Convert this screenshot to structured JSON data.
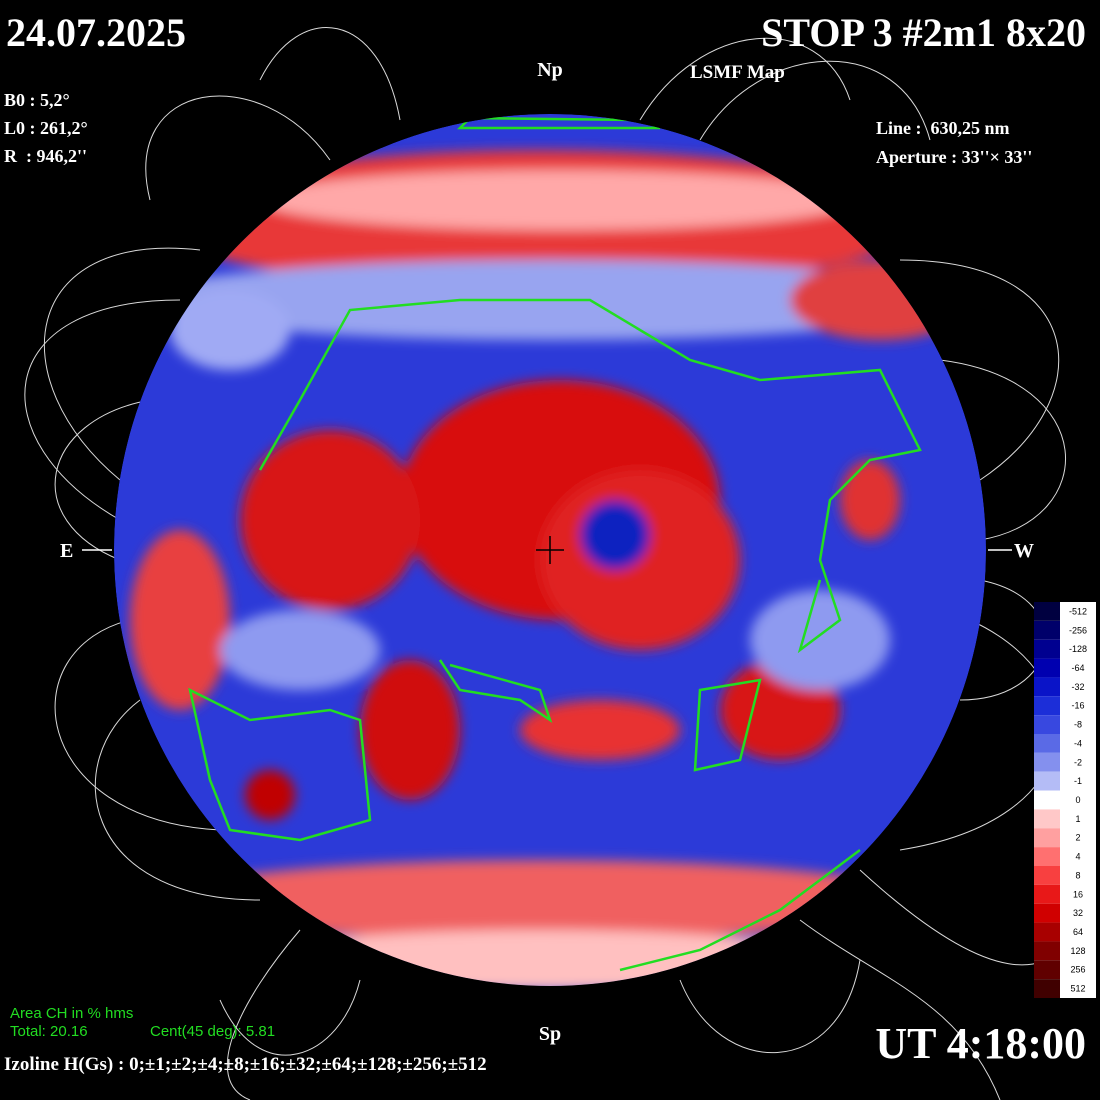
{
  "header": {
    "date": "24.07.2025",
    "title": "STOP 3 #2m1 8x20",
    "subtitle": "LSMF  Map"
  },
  "parameters": [
    "B0 : 5,2°",
    "L0 : 261,2°",
    "R  : 946,2''"
  ],
  "instrument": [
    "Line :  630,25 nm",
    "Aperture : 33''× 33''"
  ],
  "directions": {
    "north": "Np",
    "south": "Sp",
    "east": "E",
    "west": "W"
  },
  "colorbar": {
    "labels": [
      "-512",
      "-256",
      "-128",
      "-64",
      "-32",
      "-16",
      "-8",
      "-4",
      "-2",
      "-1",
      "0",
      "1",
      "2",
      "4",
      "8",
      "16",
      "32",
      "64",
      "128",
      "256",
      "512"
    ],
    "colors": [
      "#000040",
      "#00006a",
      "#000090",
      "#0000b0",
      "#0a14c8",
      "#1c2ed8",
      "#3848e0",
      "#5a6ae6",
      "#8490ee",
      "#b4bcf6",
      "#ffffff",
      "#ffc8c8",
      "#ffa0a0",
      "#ff7070",
      "#f84040",
      "#e81818",
      "#d00000",
      "#a80000",
      "#800000",
      "#600000",
      "#400000"
    ]
  },
  "area": {
    "title": "Area CH in % hms",
    "total": "Total: 20.16",
    "central": "Cent(45 deg): 5.81"
  },
  "time": "UT 4:18:00",
  "isolines": "Izoline H(Gs) : 0;±1;±2;±4;±8;±16;±32;±64;±128;±256;±512"
}
